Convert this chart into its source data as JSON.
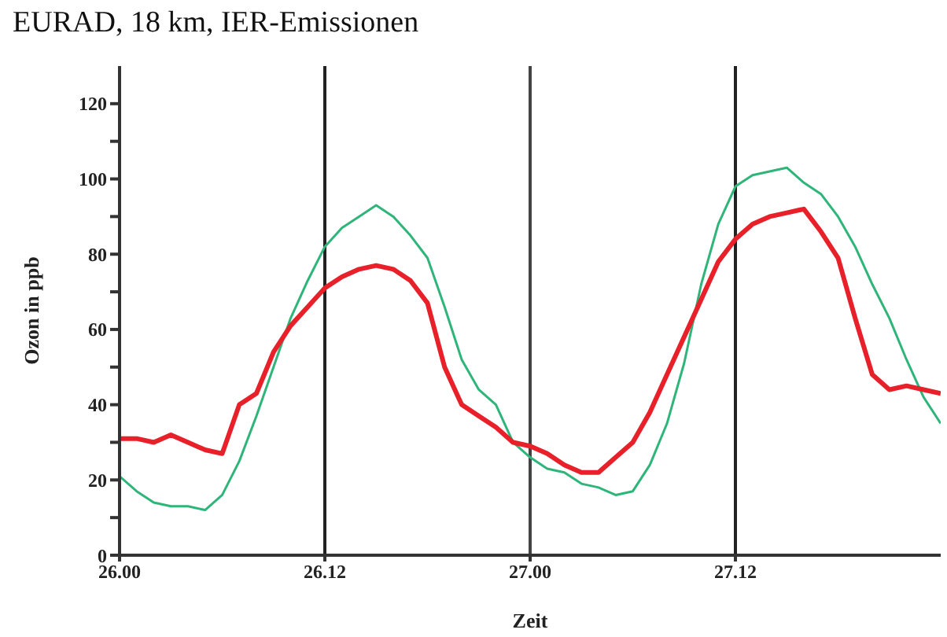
{
  "chart_data": {
    "type": "line",
    "title": "EURAD, 18 km, IER-Emissionen",
    "xlabel": "Zeit",
    "ylabel": "Ozon in ppb",
    "categories": [
      "26.00",
      null,
      null,
      null,
      null,
      null,
      null,
      null,
      null,
      null,
      null,
      null,
      "26.12",
      null,
      null,
      null,
      null,
      null,
      null,
      null,
      null,
      null,
      null,
      null,
      "27.00",
      null,
      null,
      null,
      null,
      null,
      null,
      null,
      null,
      null,
      null,
      null,
      "27.12",
      null,
      null,
      null,
      null,
      null,
      null,
      null,
      null,
      null,
      null,
      null,
      null
    ],
    "ylim": [
      0,
      130
    ],
    "yticks": [
      0,
      {
        "value": 10,
        "label": null
      },
      20,
      {
        "value": 30,
        "label": null
      },
      40,
      {
        "value": 50,
        "label": null
      },
      60,
      {
        "value": 70,
        "label": null
      },
      80,
      {
        "value": 90,
        "label": null
      },
      100,
      {
        "value": 110,
        "label": null
      },
      120
    ],
    "grid": false,
    "marker": "none",
    "line_style": "solid",
    "ref_lines": [
      {
        "axis": "x",
        "value": "26.12",
        "color": "#222222"
      },
      {
        "axis": "x",
        "value": "27.00",
        "color": "#444444"
      },
      {
        "axis": "x",
        "value": "27.12",
        "color": "#222222"
      }
    ],
    "series": [
      {
        "color": "#2fb57a",
        "values": [
          21,
          17,
          14,
          13,
          13,
          12,
          16,
          25,
          37,
          50,
          63,
          73,
          82,
          87,
          90,
          93,
          90,
          85,
          79,
          66,
          52,
          44,
          40,
          30,
          26,
          23,
          22,
          19,
          18,
          16,
          17,
          24,
          35,
          51,
          72,
          88,
          98,
          101,
          102,
          103,
          99,
          96,
          90,
          82,
          72,
          63,
          52,
          42,
          35
        ]
      },
      {
        "color": "#e8202a",
        "values": [
          31,
          31,
          30,
          32,
          30,
          28,
          27,
          40,
          43,
          54,
          61,
          66,
          71,
          74,
          76,
          77,
          76,
          73,
          67,
          50,
          40,
          37,
          34,
          30,
          29,
          27,
          24,
          22,
          22,
          26,
          30,
          38,
          48,
          58,
          68,
          78,
          84,
          88,
          90,
          91,
          92,
          86,
          79,
          63,
          48,
          44,
          45,
          44,
          43
        ]
      }
    ]
  }
}
